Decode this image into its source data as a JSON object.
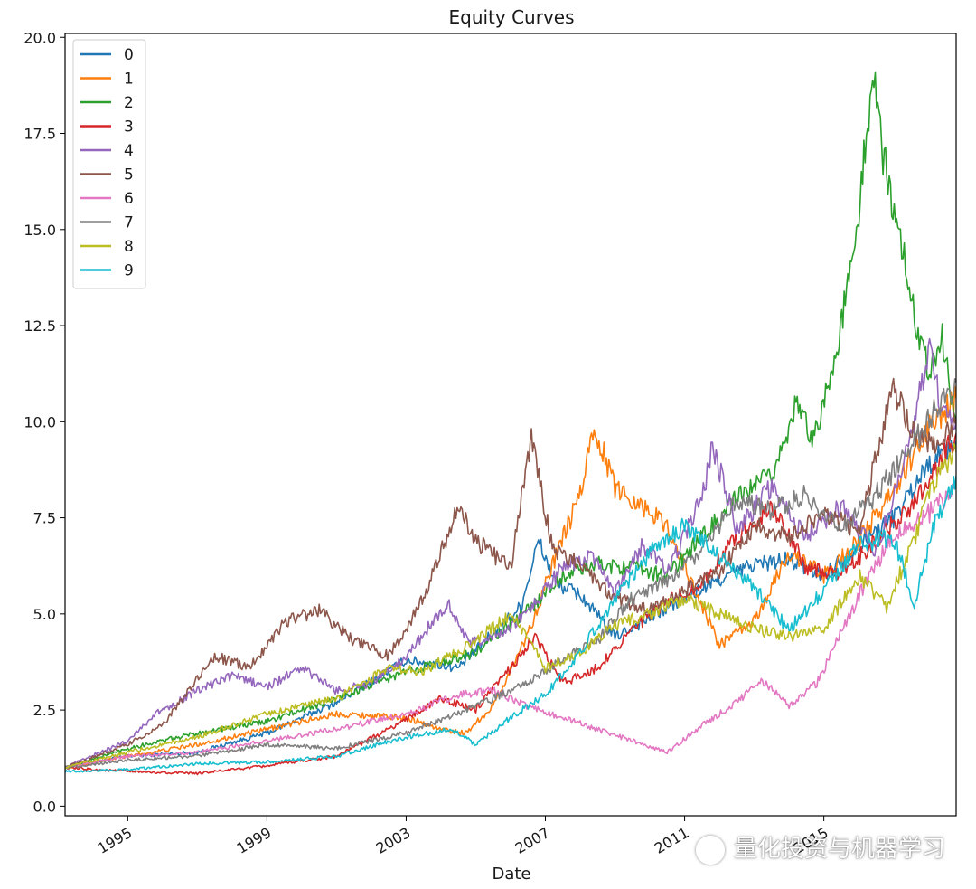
{
  "chart_data": {
    "type": "line",
    "title": "Equity Curves",
    "xlabel": "Date",
    "ylabel": "",
    "xlim": [
      1993.2,
      2018.8
    ],
    "ylim": [
      -0.25,
      20.1
    ],
    "x_ticks": [
      1995,
      1999,
      2003,
      2007,
      2011,
      2015
    ],
    "x_tick_labels": [
      "1995",
      "1999",
      "2003",
      "2007",
      "2011",
      "2015"
    ],
    "y_ticks": [
      0.0,
      2.5,
      5.0,
      7.5,
      10.0,
      12.5,
      15.0,
      17.5,
      20.0
    ],
    "y_tick_labels": [
      "0.0",
      "2.5",
      "5.0",
      "7.5",
      "10.0",
      "12.5",
      "15.0",
      "17.5",
      "20.0"
    ],
    "grid": false,
    "legend_position": "top-left",
    "series": [
      {
        "name": "0",
        "color": "#1f77b4",
        "points": [
          [
            1993.2,
            1.0
          ],
          [
            1995,
            1.3
          ],
          [
            1997,
            1.4
          ],
          [
            1999,
            1.9
          ],
          [
            2001,
            2.7
          ],
          [
            2003,
            3.8
          ],
          [
            2004.5,
            3.6
          ],
          [
            2005.5,
            4.5
          ],
          [
            2006.3,
            5.2
          ],
          [
            2006.8,
            6.9
          ],
          [
            2007.3,
            5.8
          ],
          [
            2008,
            5.5
          ],
          [
            2009,
            4.4
          ],
          [
            2010,
            4.9
          ],
          [
            2011,
            5.4
          ],
          [
            2012,
            5.9
          ],
          [
            2013,
            6.3
          ],
          [
            2014,
            6.4
          ],
          [
            2015,
            6.0
          ],
          [
            2016,
            6.8
          ],
          [
            2017,
            7.5
          ],
          [
            2018,
            8.9
          ],
          [
            2018.8,
            9.5
          ]
        ]
      },
      {
        "name": "1",
        "color": "#ff7f0e",
        "points": [
          [
            1993.2,
            1.0
          ],
          [
            1995,
            1.3
          ],
          [
            1997,
            1.6
          ],
          [
            1999,
            2.0
          ],
          [
            2001,
            2.4
          ],
          [
            2003,
            2.3
          ],
          [
            2004,
            2.0
          ],
          [
            2004.7,
            1.9
          ],
          [
            2005.5,
            2.6
          ],
          [
            2006.5,
            4.5
          ],
          [
            2007.3,
            6.5
          ],
          [
            2008,
            8.1
          ],
          [
            2008.4,
            9.9
          ],
          [
            2009,
            8.3
          ],
          [
            2009.8,
            7.8
          ],
          [
            2010.5,
            7.3
          ],
          [
            2011.2,
            5.8
          ],
          [
            2012,
            4.2
          ],
          [
            2013,
            4.8
          ],
          [
            2014,
            6.6
          ],
          [
            2015,
            6.0
          ],
          [
            2016,
            6.9
          ],
          [
            2017,
            8.2
          ],
          [
            2018,
            9.8
          ],
          [
            2018.8,
            10.6
          ]
        ]
      },
      {
        "name": "2",
        "color": "#2ca02c",
        "points": [
          [
            1993.2,
            1.0
          ],
          [
            1995,
            1.5
          ],
          [
            1997,
            1.9
          ],
          [
            1999,
            2.2
          ],
          [
            2001,
            2.8
          ],
          [
            2003,
            3.5
          ],
          [
            2005,
            4.0
          ],
          [
            2006.5,
            5.1
          ],
          [
            2007.5,
            6.0
          ],
          [
            2008.5,
            6.3
          ],
          [
            2009.5,
            6.2
          ],
          [
            2010.5,
            6.0
          ],
          [
            2011.5,
            7.0
          ],
          [
            2012.5,
            8.0
          ],
          [
            2013.5,
            8.6
          ],
          [
            2014.2,
            10.4
          ],
          [
            2014.7,
            9.6
          ],
          [
            2015.3,
            11.5
          ],
          [
            2015.9,
            14.6
          ],
          [
            2016.4,
            19.0
          ],
          [
            2016.7,
            17.0
          ],
          [
            2017.2,
            14.7
          ],
          [
            2017.6,
            12.8
          ],
          [
            2018,
            11.4
          ],
          [
            2018.4,
            12.2
          ],
          [
            2018.8,
            9.8
          ]
        ]
      },
      {
        "name": "3",
        "color": "#d62728",
        "points": [
          [
            1993.2,
            1.0
          ],
          [
            1995,
            0.9
          ],
          [
            1997,
            0.85
          ],
          [
            1999,
            1.05
          ],
          [
            2001,
            1.3
          ],
          [
            2002.5,
            2.0
          ],
          [
            2004,
            2.8
          ],
          [
            2005,
            2.5
          ],
          [
            2006,
            3.6
          ],
          [
            2006.7,
            4.4
          ],
          [
            2007.5,
            3.2
          ],
          [
            2008.5,
            3.6
          ],
          [
            2009.5,
            4.6
          ],
          [
            2010.5,
            5.3
          ],
          [
            2011.5,
            5.8
          ],
          [
            2012.5,
            7.0
          ],
          [
            2013.5,
            7.8
          ],
          [
            2014.5,
            6.2
          ],
          [
            2015.5,
            6.0
          ],
          [
            2016.5,
            6.9
          ],
          [
            2017.5,
            7.8
          ],
          [
            2018.5,
            9.2
          ],
          [
            2018.8,
            9.7
          ]
        ]
      },
      {
        "name": "4",
        "color": "#9467bd",
        "points": [
          [
            1993.2,
            1.0
          ],
          [
            1995,
            1.7
          ],
          [
            1995.8,
            2.4
          ],
          [
            1997,
            3.0
          ],
          [
            1998,
            3.4
          ],
          [
            1999,
            3.1
          ],
          [
            2000,
            3.6
          ],
          [
            2001,
            3.0
          ],
          [
            2002,
            3.2
          ],
          [
            2003,
            3.9
          ],
          [
            2004.2,
            5.3
          ],
          [
            2004.8,
            4.2
          ],
          [
            2006,
            4.6
          ],
          [
            2006.8,
            5.4
          ],
          [
            2007.5,
            6.2
          ],
          [
            2008.3,
            6.5
          ],
          [
            2009,
            5.5
          ],
          [
            2009.8,
            6.8
          ],
          [
            2010.5,
            6.1
          ],
          [
            2011.5,
            8.0
          ],
          [
            2011.8,
            9.4
          ],
          [
            2012.5,
            7.2
          ],
          [
            2013.5,
            8.3
          ],
          [
            2014.5,
            7.0
          ],
          [
            2015.5,
            7.8
          ],
          [
            2016.5,
            6.6
          ],
          [
            2017.5,
            9.5
          ],
          [
            2018,
            11.9
          ],
          [
            2018.4,
            10.3
          ],
          [
            2018.8,
            10.0
          ]
        ]
      },
      {
        "name": "5",
        "color": "#8c564b",
        "points": [
          [
            1993.2,
            1.0
          ],
          [
            1995,
            1.6
          ],
          [
            1996,
            2.1
          ],
          [
            1997.5,
            3.9
          ],
          [
            1998.5,
            3.6
          ],
          [
            1999.5,
            4.8
          ],
          [
            2000.5,
            5.1
          ],
          [
            2001.5,
            4.3
          ],
          [
            2002.5,
            3.9
          ],
          [
            2003.5,
            5.4
          ],
          [
            2004.5,
            7.8
          ],
          [
            2005,
            6.9
          ],
          [
            2006,
            6.2
          ],
          [
            2006.6,
            9.6
          ],
          [
            2007.2,
            6.7
          ],
          [
            2008,
            6.3
          ],
          [
            2009,
            5.4
          ],
          [
            2010,
            5.1
          ],
          [
            2011,
            5.6
          ],
          [
            2012,
            6.1
          ],
          [
            2013,
            7.3
          ],
          [
            2014,
            7.0
          ],
          [
            2015,
            7.6
          ],
          [
            2016,
            7.2
          ],
          [
            2017,
            10.9
          ],
          [
            2017.6,
            9.7
          ],
          [
            2018.3,
            9.4
          ],
          [
            2018.8,
            10.1
          ]
        ]
      },
      {
        "name": "6",
        "color": "#e377c2",
        "points": [
          [
            1993.2,
            1.0
          ],
          [
            1995,
            1.3
          ],
          [
            1997,
            1.4
          ],
          [
            1999,
            1.7
          ],
          [
            2001,
            2.0
          ],
          [
            2003,
            2.4
          ],
          [
            2004.5,
            2.9
          ],
          [
            2005.5,
            3.0
          ],
          [
            2006.5,
            2.6
          ],
          [
            2007.5,
            2.3
          ],
          [
            2008.5,
            2.0
          ],
          [
            2009.5,
            1.7
          ],
          [
            2010.5,
            1.4
          ],
          [
            2011.5,
            2.1
          ],
          [
            2012.5,
            2.7
          ],
          [
            2013.2,
            3.3
          ],
          [
            2014,
            2.6
          ],
          [
            2014.8,
            3.2
          ],
          [
            2015.5,
            4.5
          ],
          [
            2016.3,
            6.0
          ],
          [
            2017,
            7.0
          ],
          [
            2018,
            7.6
          ],
          [
            2018.8,
            8.3
          ]
        ]
      },
      {
        "name": "7",
        "color": "#7f7f7f",
        "points": [
          [
            1993.2,
            1.0
          ],
          [
            1995,
            1.2
          ],
          [
            1997,
            1.3
          ],
          [
            1999,
            1.6
          ],
          [
            2001,
            1.5
          ],
          [
            2003,
            1.9
          ],
          [
            2005,
            2.6
          ],
          [
            2006.5,
            3.2
          ],
          [
            2007.5,
            3.8
          ],
          [
            2008.5,
            4.3
          ],
          [
            2009.5,
            5.4
          ],
          [
            2010.5,
            5.9
          ],
          [
            2011.5,
            6.6
          ],
          [
            2012.5,
            8.0
          ],
          [
            2013.5,
            7.7
          ],
          [
            2014.5,
            8.1
          ],
          [
            2015.5,
            7.2
          ],
          [
            2016.5,
            8.1
          ],
          [
            2017.5,
            9.3
          ],
          [
            2018.2,
            10.3
          ],
          [
            2018.8,
            11.0
          ]
        ]
      },
      {
        "name": "8",
        "color": "#bcbd22",
        "points": [
          [
            1993.2,
            1.0
          ],
          [
            1995,
            1.4
          ],
          [
            1997,
            1.8
          ],
          [
            1999,
            2.4
          ],
          [
            2001,
            2.8
          ],
          [
            2002.5,
            3.6
          ],
          [
            2003.5,
            3.5
          ],
          [
            2005,
            4.3
          ],
          [
            2006,
            5.0
          ],
          [
            2007,
            3.6
          ],
          [
            2008,
            4.0
          ],
          [
            2009,
            4.7
          ],
          [
            2010,
            5.0
          ],
          [
            2011,
            5.4
          ],
          [
            2012,
            5.0
          ],
          [
            2013,
            4.6
          ],
          [
            2014,
            4.4
          ],
          [
            2015,
            4.6
          ],
          [
            2016,
            6.0
          ],
          [
            2016.8,
            5.2
          ],
          [
            2017.5,
            6.7
          ],
          [
            2018.2,
            8.5
          ],
          [
            2018.8,
            9.2
          ]
        ]
      },
      {
        "name": "9",
        "color": "#17becf",
        "points": [
          [
            1993.2,
            0.9
          ],
          [
            1995,
            0.95
          ],
          [
            1997,
            1.1
          ],
          [
            1999,
            1.15
          ],
          [
            2001,
            1.3
          ],
          [
            2003,
            1.8
          ],
          [
            2004.3,
            2.0
          ],
          [
            2005,
            1.6
          ],
          [
            2006,
            2.3
          ],
          [
            2007,
            2.9
          ],
          [
            2008,
            4.0
          ],
          [
            2009,
            5.4
          ],
          [
            2010,
            6.6
          ],
          [
            2011,
            7.3
          ],
          [
            2012,
            6.5
          ],
          [
            2013,
            5.7
          ],
          [
            2014,
            4.6
          ],
          [
            2015,
            5.6
          ],
          [
            2016,
            6.8
          ],
          [
            2017,
            7.0
          ],
          [
            2017.6,
            5.3
          ],
          [
            2018.2,
            7.4
          ],
          [
            2018.8,
            8.6
          ]
        ]
      }
    ]
  },
  "watermark": {
    "text": "量化投资与机器学习",
    "icon": "wechat-icon"
  }
}
